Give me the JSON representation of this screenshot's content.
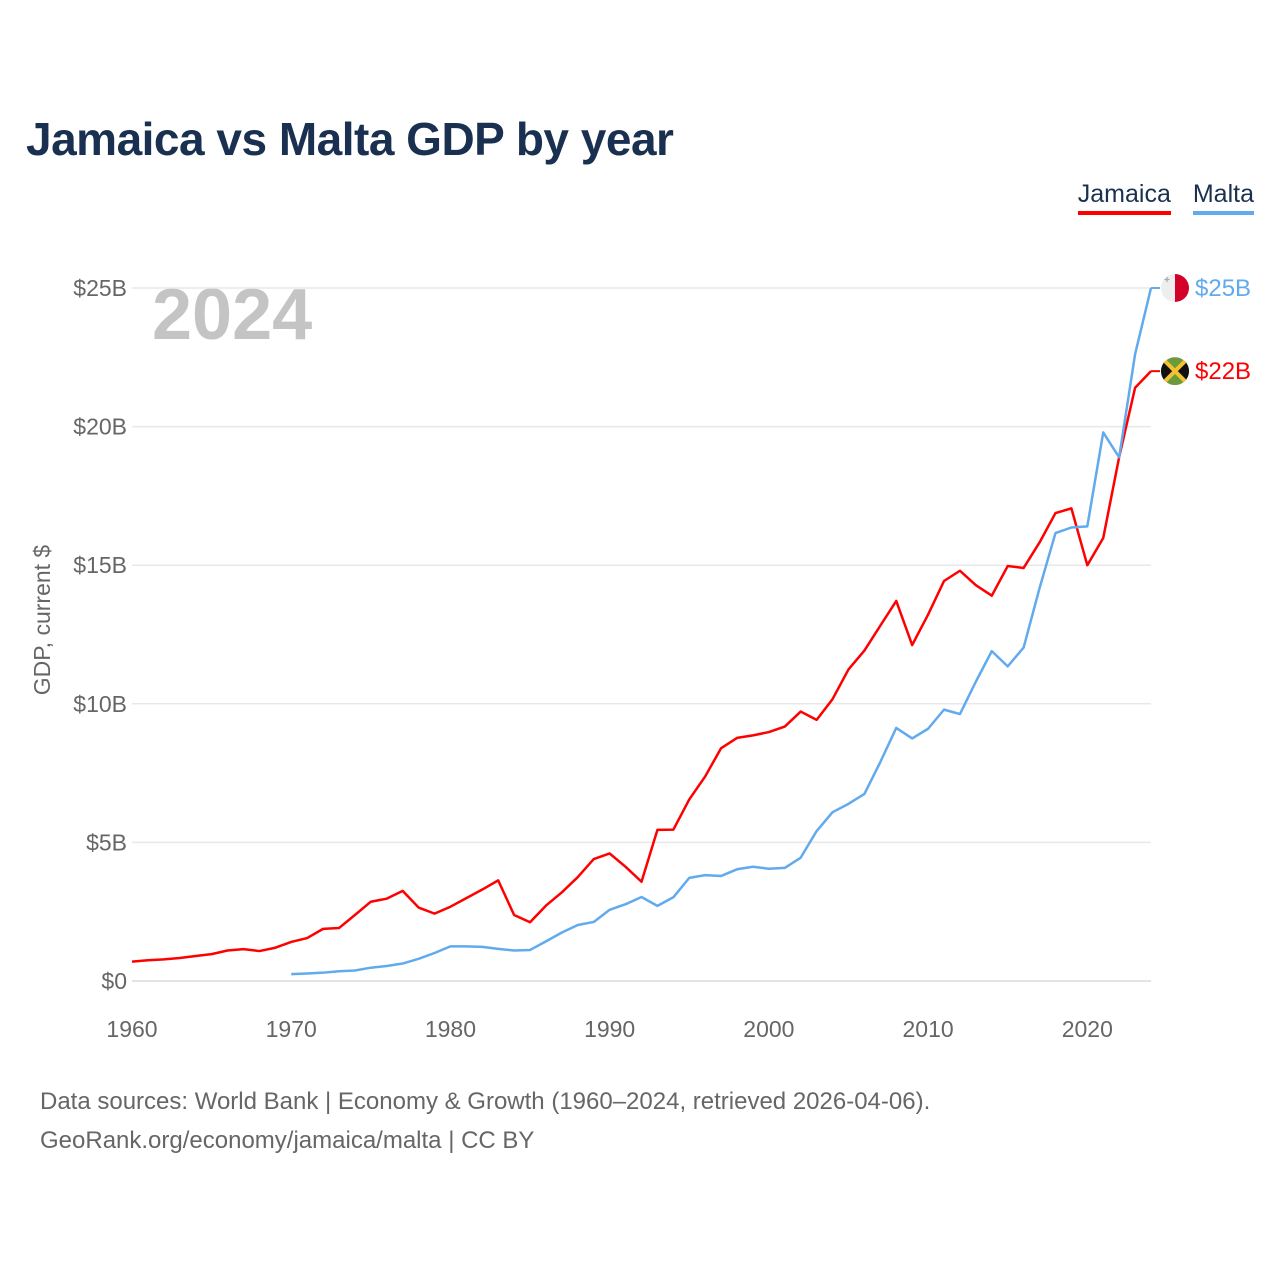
{
  "title": "Jamaica vs Malta GDP by year",
  "legend": [
    {
      "label": "Jamaica",
      "color": "#ff0000"
    },
    {
      "label": "Malta",
      "color": "#62aaee"
    }
  ],
  "year_watermark": "2024",
  "footer": {
    "line1": "Data sources: World Bank | Economy & Growth (1960–2024, retrieved 2026-04-06).",
    "line2": "GeoRank.org/economy/jamaica/malta | CC BY"
  },
  "chart_data": {
    "type": "line",
    "title": "Jamaica vs Malta GDP by year",
    "xlabel": "",
    "ylabel": "GDP, current $",
    "xlim": [
      1960,
      2024
    ],
    "ylim": [
      0,
      25
    ],
    "y_unit": "billion USD",
    "grid": true,
    "legend_position": "top-right",
    "x_ticks": [
      "1960",
      "1970",
      "1980",
      "1990",
      "2000",
      "2010",
      "2020"
    ],
    "y_ticks": [
      "$0",
      "$5B",
      "$10B",
      "$15B",
      "$20B",
      "$25B"
    ],
    "series": [
      {
        "name": "Jamaica",
        "color": "#ff0000",
        "end_label": "$22B",
        "flag": "jamaica-flag",
        "start_year": 1960,
        "values": [
          0.7,
          0.75,
          0.78,
          0.83,
          0.9,
          0.97,
          1.1,
          1.15,
          1.08,
          1.2,
          1.41,
          1.55,
          1.88,
          1.91,
          2.38,
          2.86,
          2.97,
          3.25,
          2.65,
          2.43,
          2.68,
          2.99,
          3.3,
          3.63,
          2.38,
          2.12,
          2.72,
          3.2,
          3.75,
          4.4,
          4.6,
          4.12,
          3.58,
          5.45,
          5.46,
          6.55,
          7.38,
          8.4,
          8.77,
          8.86,
          8.98,
          9.18,
          9.72,
          9.42,
          10.17,
          11.24,
          11.92,
          12.82,
          13.71,
          12.12,
          13.22,
          14.43,
          14.8,
          14.28,
          13.9,
          14.97,
          14.9,
          15.82,
          16.88,
          17.05,
          15.0,
          15.98,
          18.9,
          21.4,
          22.0
        ]
      },
      {
        "name": "Malta",
        "color": "#62aaee",
        "end_label": "$25B",
        "flag": "malta-flag",
        "start_year": 1970,
        "values": [
          0.25,
          0.27,
          0.3,
          0.35,
          0.38,
          0.48,
          0.54,
          0.63,
          0.8,
          1.01,
          1.25,
          1.25,
          1.23,
          1.16,
          1.1,
          1.12,
          1.43,
          1.75,
          2.02,
          2.13,
          2.57,
          2.77,
          3.03,
          2.71,
          3.02,
          3.72,
          3.82,
          3.79,
          4.03,
          4.12,
          4.05,
          4.08,
          4.45,
          5.41,
          6.09,
          6.39,
          6.75,
          7.9,
          9.13,
          8.75,
          9.1,
          9.79,
          9.63,
          10.8,
          11.9,
          11.35,
          12.03,
          14.17,
          16.16,
          16.36,
          16.4,
          19.79,
          18.89,
          22.61,
          25.0
        ]
      }
    ]
  }
}
